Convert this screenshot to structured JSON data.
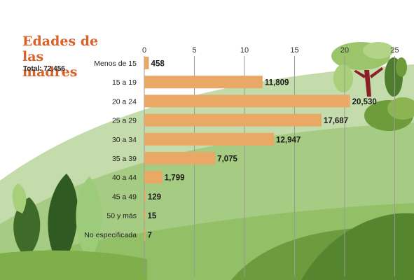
{
  "title": "Edades de las madres",
  "total_label": "Total: 72,456",
  "colors": {
    "bar": "#eaa866",
    "title": "#d9622b",
    "hill_light": "#b9d5a0",
    "hill_mid": "#8fbd62",
    "hill_dark": "#4f7d2e"
  },
  "chart_data": {
    "type": "bar",
    "orientation": "horizontal",
    "title": "Edades de las madres",
    "subtitle": "Total: 72,456",
    "categories": [
      "Menos de 15",
      "15 a 19",
      "20 a 24",
      "25 a 29",
      "30 a 34",
      "35 a 39",
      "40 a 44",
      "45 a 49",
      "50 y más",
      "No especificada"
    ],
    "values": [
      458,
      11809,
      20530,
      17687,
      12947,
      7075,
      1799,
      129,
      15,
      7
    ],
    "value_labels": [
      "458",
      "11,809",
      "20,530",
      "17,687",
      "12,947",
      "7,075",
      "1,799",
      "129",
      "15",
      "7"
    ],
    "axis_ticks": [
      0,
      5,
      10,
      15,
      20,
      25
    ],
    "axis_tick_labels": [
      "0",
      "5",
      "10",
      "15",
      "20",
      "25"
    ],
    "axis_unit_scale": 1000,
    "xlim": [
      0,
      25000
    ],
    "axis_position": "top",
    "grid": true,
    "xlabel": "",
    "ylabel": ""
  }
}
